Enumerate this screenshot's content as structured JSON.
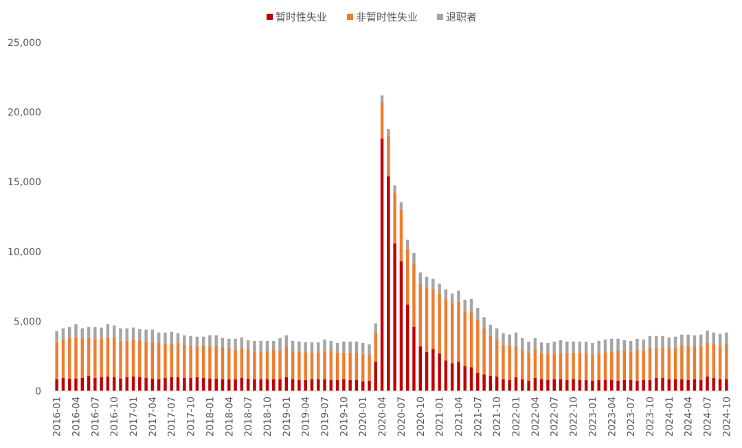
{
  "chart_data": {
    "type": "bar",
    "stacked": true,
    "title": "",
    "xlabel": "",
    "ylabel": "",
    "ylim": [
      0,
      25000
    ],
    "yticks": [
      0,
      5000,
      10000,
      15000,
      20000,
      25000
    ],
    "ytick_labels": [
      "0",
      "5,000",
      "10,000",
      "15,000",
      "20,000",
      "25,000"
    ],
    "grid": false,
    "legend_position": "top",
    "categories": [
      "2016-01",
      "2016-02",
      "2016-03",
      "2016-04",
      "2016-05",
      "2016-06",
      "2016-07",
      "2016-08",
      "2016-09",
      "2016-10",
      "2016-11",
      "2016-12",
      "2017-01",
      "2017-02",
      "2017-03",
      "2017-04",
      "2017-05",
      "2017-06",
      "2017-07",
      "2017-08",
      "2017-09",
      "2017-10",
      "2017-11",
      "2017-12",
      "2018-01",
      "2018-02",
      "2018-03",
      "2018-04",
      "2018-05",
      "2018-06",
      "2018-07",
      "2018-08",
      "2018-09",
      "2018-10",
      "2018-11",
      "2018-12",
      "2019-01",
      "2019-02",
      "2019-03",
      "2019-04",
      "2019-05",
      "2019-06",
      "2019-07",
      "2019-08",
      "2019-09",
      "2019-10",
      "2019-11",
      "2019-12",
      "2020-01",
      "2020-02",
      "2020-03",
      "2020-04",
      "2020-05",
      "2020-06",
      "2020-07",
      "2020-08",
      "2020-09",
      "2020-10",
      "2020-11",
      "2020-12",
      "2021-01",
      "2021-02",
      "2021-03",
      "2021-04",
      "2021-05",
      "2021-06",
      "2021-07",
      "2021-08",
      "2021-09",
      "2021-10",
      "2021-11",
      "2021-12",
      "2022-01",
      "2022-02",
      "2022-03",
      "2022-04",
      "2022-05",
      "2022-06",
      "2022-07",
      "2022-08",
      "2022-09",
      "2022-10",
      "2022-11",
      "2022-12",
      "2023-01",
      "2023-02",
      "2023-03",
      "2023-04",
      "2023-05",
      "2023-06",
      "2023-07",
      "2023-08",
      "2023-09",
      "2023-10",
      "2023-11",
      "2023-12",
      "2024-01",
      "2024-02",
      "2024-03",
      "2024-04",
      "2024-05",
      "2024-06",
      "2024-07",
      "2024-08",
      "2024-09",
      "2024-10"
    ],
    "xtick_labels": [
      "2016-01",
      "2016-04",
      "2016-07",
      "2016-10",
      "2017-01",
      "2017-04",
      "2017-07",
      "2017-10",
      "2018-01",
      "2018-04",
      "2018-07",
      "2018-10",
      "2019-01",
      "2019-04",
      "2019-07",
      "2019-10",
      "2020-01",
      "2020-04",
      "2020-07",
      "2020-10",
      "2021-01",
      "2021-04",
      "2021-07",
      "2021-10",
      "2022-01",
      "2022-04",
      "2022-07",
      "2022-10",
      "2023-01",
      "2023-04",
      "2023-07",
      "2023-10",
      "2024-01",
      "2024-04",
      "2024-07",
      "2024-10"
    ],
    "series": [
      {
        "name": "暂时性失业",
        "color": "#c00000",
        "values": [
          850,
          950,
          900,
          900,
          950,
          1100,
          950,
          1000,
          1050,
          1000,
          900,
          1000,
          1050,
          1000,
          950,
          900,
          850,
          950,
          1000,
          1000,
          950,
          950,
          1000,
          950,
          900,
          900,
          850,
          850,
          850,
          950,
          900,
          850,
          850,
          850,
          850,
          850,
          1000,
          850,
          800,
          800,
          850,
          850,
          850,
          800,
          800,
          850,
          800,
          800,
          700,
          750,
          2100,
          18100,
          15400,
          10600,
          9300,
          6200,
          4600,
          3200,
          2800,
          3000,
          2700,
          2200,
          2000,
          2100,
          1800,
          1700,
          1300,
          1200,
          1100,
          1050,
          850,
          800,
          1000,
          850,
          750,
          950,
          850,
          800,
          850,
          850,
          800,
          850,
          800,
          800,
          750,
          800,
          800,
          800,
          750,
          800,
          800,
          750,
          800,
          800,
          950,
          950,
          850,
          850,
          850,
          800,
          850,
          800,
          1050,
          950,
          850,
          850
        ]
      },
      {
        "name": "非暂时性失业",
        "color": "#ed7d31",
        "values": [
          2700,
          2750,
          2900,
          3000,
          2800,
          2700,
          2800,
          2750,
          2800,
          2850,
          2700,
          2600,
          2650,
          2650,
          2600,
          2600,
          2600,
          2450,
          2400,
          2450,
          2350,
          2300,
          2200,
          2300,
          2300,
          2350,
          2250,
          2200,
          2100,
          2100,
          2050,
          2000,
          1950,
          2000,
          2100,
          2050,
          2150,
          2050,
          2000,
          2000,
          1900,
          1950,
          2000,
          2100,
          1950,
          1900,
          1950,
          1950,
          1950,
          1850,
          2100,
          2600,
          2900,
          3600,
          3700,
          4000,
          4500,
          4500,
          4600,
          4300,
          4300,
          4400,
          4300,
          4300,
          3900,
          4000,
          3800,
          3300,
          2850,
          2650,
          2450,
          2450,
          2250,
          2100,
          2000,
          2000,
          1850,
          1850,
          1850,
          1900,
          1900,
          1900,
          1950,
          1950,
          1850,
          1900,
          2000,
          2000,
          2150,
          2100,
          2000,
          2200,
          2100,
          2300,
          2150,
          2150,
          2200,
          2200,
          2400,
          2400,
          2350,
          2400,
          2400,
          2400,
          2400,
          2500
        ]
      },
      {
        "name": "退职者",
        "color": "#a5a5a5",
        "values": [
          750,
          800,
          800,
          900,
          750,
          800,
          850,
          800,
          950,
          850,
          900,
          900,
          850,
          800,
          850,
          900,
          750,
          800,
          850,
          700,
          700,
          700,
          700,
          650,
          800,
          750,
          700,
          700,
          800,
          800,
          700,
          750,
          800,
          750,
          650,
          900,
          850,
          700,
          750,
          700,
          750,
          700,
          850,
          700,
          700,
          800,
          800,
          800,
          800,
          750,
          650,
          500,
          500,
          550,
          550,
          650,
          800,
          800,
          800,
          750,
          700,
          700,
          700,
          800,
          850,
          900,
          850,
          800,
          800,
          800,
          850,
          800,
          950,
          850,
          800,
          850,
          800,
          800,
          850,
          900,
          850,
          800,
          800,
          800,
          850,
          900,
          900,
          950,
          850,
          750,
          800,
          800,
          800,
          850,
          850,
          850,
          800,
          850,
          800,
          850,
          800,
          850,
          900,
          850,
          850,
          850
        ]
      }
    ]
  }
}
